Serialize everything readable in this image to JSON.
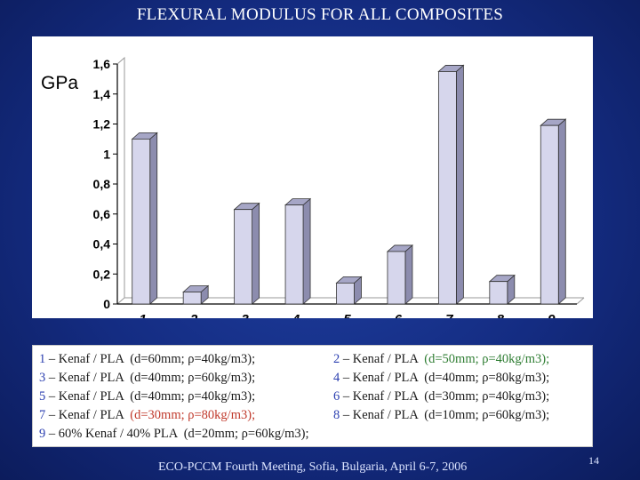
{
  "slide_title": "FLEXURAL MODULUS FOR ALL COMPOSITES",
  "chart_data": {
    "type": "bar",
    "ylabel": "GPa",
    "categories": [
      "1",
      "2",
      "3",
      "4",
      "5",
      "6",
      "7",
      "8",
      "9"
    ],
    "values": [
      1.1,
      0.08,
      0.63,
      0.66,
      0.14,
      0.35,
      1.55,
      0.15,
      1.19
    ],
    "yticks": [
      "0",
      "0,2",
      "0,4",
      "0,6",
      "0,8",
      "1",
      "1,2",
      "1,4",
      "1,6"
    ],
    "ylim": [
      0,
      1.6
    ],
    "grid": false,
    "bar_style": "3d",
    "colors": {
      "bar_front": "#d6d6ec",
      "bar_side": "#8c8cae",
      "bar_top": "#a6a6c6"
    }
  },
  "legend": {
    "left": [
      {
        "num": "1",
        "text": " – Kenaf / PLA  ",
        "spec": "(d=60mm; ρ=40kg/m3);",
        "tone": "plain"
      },
      {
        "num": "3",
        "text": " – Kenaf / PLA  ",
        "spec": "(d=40mm; ρ=60kg/m3);",
        "tone": "plain"
      },
      {
        "num": "5",
        "text": " – Kenaf / PLA  ",
        "spec": "(d=40mm; ρ=40kg/m3);",
        "tone": "plain"
      },
      {
        "num": "7",
        "text": " – Kenaf / PLA  ",
        "spec": "(d=30mm; ρ=80kg/m3);",
        "tone": "orange"
      },
      {
        "num": "9",
        "text": " – 60% Kenaf / 40% PLA  ",
        "spec": "(d=20mm; ρ=60kg/m3);",
        "tone": "orange"
      }
    ],
    "right": [
      {
        "num": "2",
        "text": " – Kenaf / PLA  ",
        "spec": "(d=50mm; ρ=40kg/m3);",
        "tone": "green"
      },
      {
        "num": "4",
        "text": " – Kenaf / PLA  ",
        "spec": "(d=40mm; ρ=80kg/m3);",
        "tone": "plain"
      },
      {
        "num": "6",
        "text": " – Kenaf / PLA  ",
        "spec": "(d=30mm; ρ=40kg/m3);",
        "tone": "plain"
      },
      {
        "num": "8",
        "text": " – Kenaf / PLA  ",
        "spec": "(d=10mm; ρ=60kg/m3);",
        "tone": "plain"
      }
    ]
  },
  "footer_text": "ECO-PCCM Fourth Meeting, Sofia, Bulgaria, April 6-7, 2006",
  "page_number": "14"
}
